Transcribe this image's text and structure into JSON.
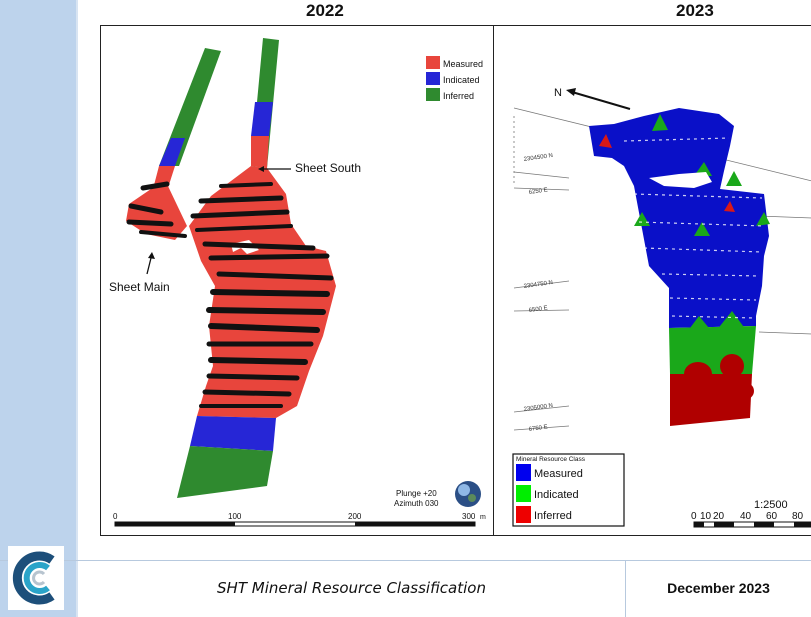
{
  "titles": {
    "left": "2022",
    "right": "2023"
  },
  "left_panel": {
    "legend": [
      {
        "label": "Measured",
        "color": "#e8453c"
      },
      {
        "label": "Indicated",
        "color": "#2626d6"
      },
      {
        "label": "Inferred",
        "color": "#2f8a2f"
      }
    ],
    "callouts": {
      "sheet_south": "Sheet South",
      "sheet_main": "Sheet Main"
    },
    "orientation": {
      "plunge": "Plunge +20",
      "azimuth": "Azimuth 030"
    },
    "scale_labels": [
      "0",
      "100",
      "200",
      "300"
    ],
    "scale_unit": "m"
  },
  "right_panel": {
    "north_label": "N",
    "grid_labels": [
      "2304500 N",
      "6250 E",
      "2304750 N",
      "6500 E",
      "2305000 N",
      "6750 E"
    ],
    "legend_title": "Mineral Resource Class",
    "legend": [
      {
        "label": "Measured",
        "color": "#0000ee"
      },
      {
        "label": "Indicated",
        "color": "#00ee00"
      },
      {
        "label": "Inferred",
        "color": "#ee0000"
      }
    ],
    "scale_ratio": "1:2500",
    "scale_labels": [
      "0",
      "10",
      "20",
      "40",
      "60",
      "80"
    ]
  },
  "footer": {
    "caption": "SHT Mineral Resource Classification",
    "date": "December 2023"
  }
}
